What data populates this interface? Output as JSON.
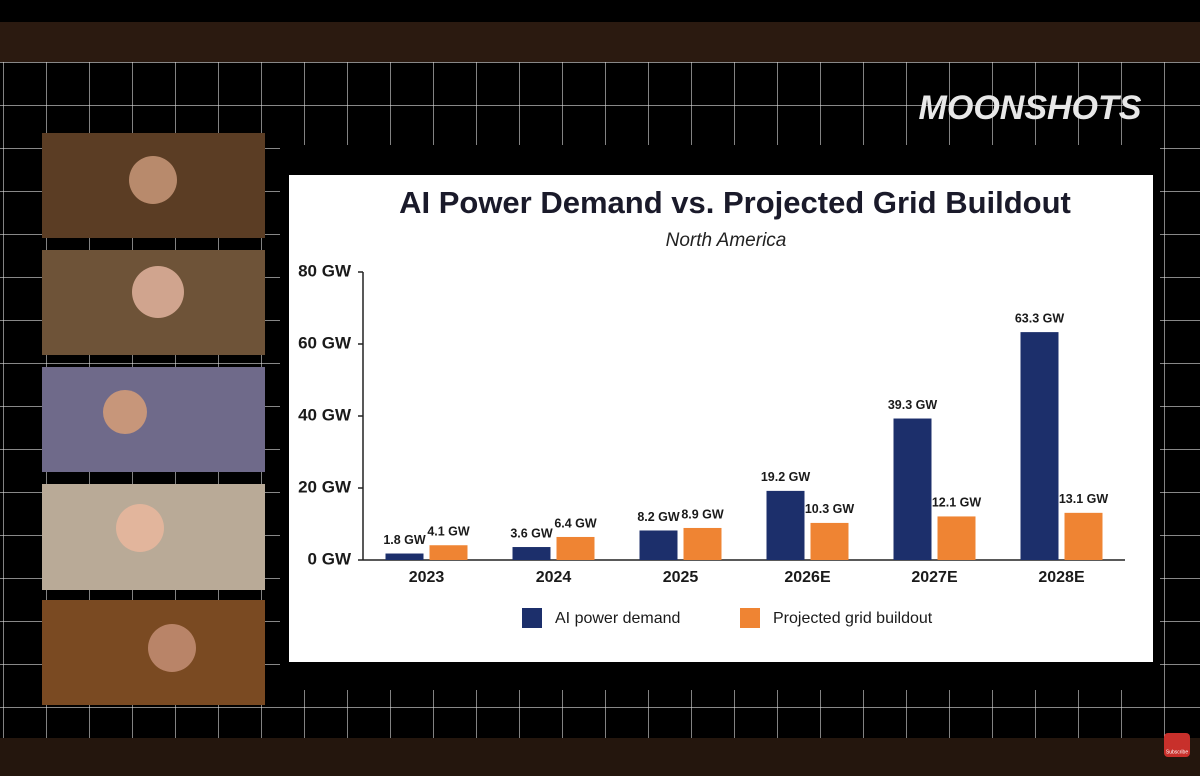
{
  "brand": "MOONSHOTS",
  "subscribe": "Subscribe",
  "chart_data": {
    "type": "bar",
    "title": "AI Power Demand vs. Projected Grid Buildout",
    "subtitle": "North America",
    "categories": [
      "2023",
      "2024",
      "2025",
      "2026E",
      "2027E",
      "2028E"
    ],
    "series": [
      {
        "name": "AI power demand",
        "color": "#1c2f6b",
        "values": [
          1.8,
          3.6,
          8.2,
          19.2,
          39.3,
          63.3
        ],
        "value_labels": [
          "1.8 GW",
          "3.6 GW",
          "8.2 GW",
          "19.2 GW",
          "39.3 GW",
          "63.3 GW"
        ]
      },
      {
        "name": "Projected grid buildout",
        "color": "#ef8433",
        "values": [
          4.1,
          6.4,
          8.9,
          10.3,
          12.1,
          13.1
        ],
        "value_labels": [
          "4.1 GW",
          "6.4 GW",
          "8.9 GW",
          "10.3 GW",
          "12.1 GW",
          "13.1 GW"
        ]
      }
    ],
    "ylim": [
      0,
      80
    ],
    "yticks": [
      {
        "value": 0,
        "label": "0 GW"
      },
      {
        "value": 20,
        "label": "20 GW"
      },
      {
        "value": 40,
        "label": "40 GW"
      },
      {
        "value": 60,
        "label": "60 GW"
      },
      {
        "value": 80,
        "label": "80 GW"
      }
    ],
    "legend": "bottom"
  }
}
